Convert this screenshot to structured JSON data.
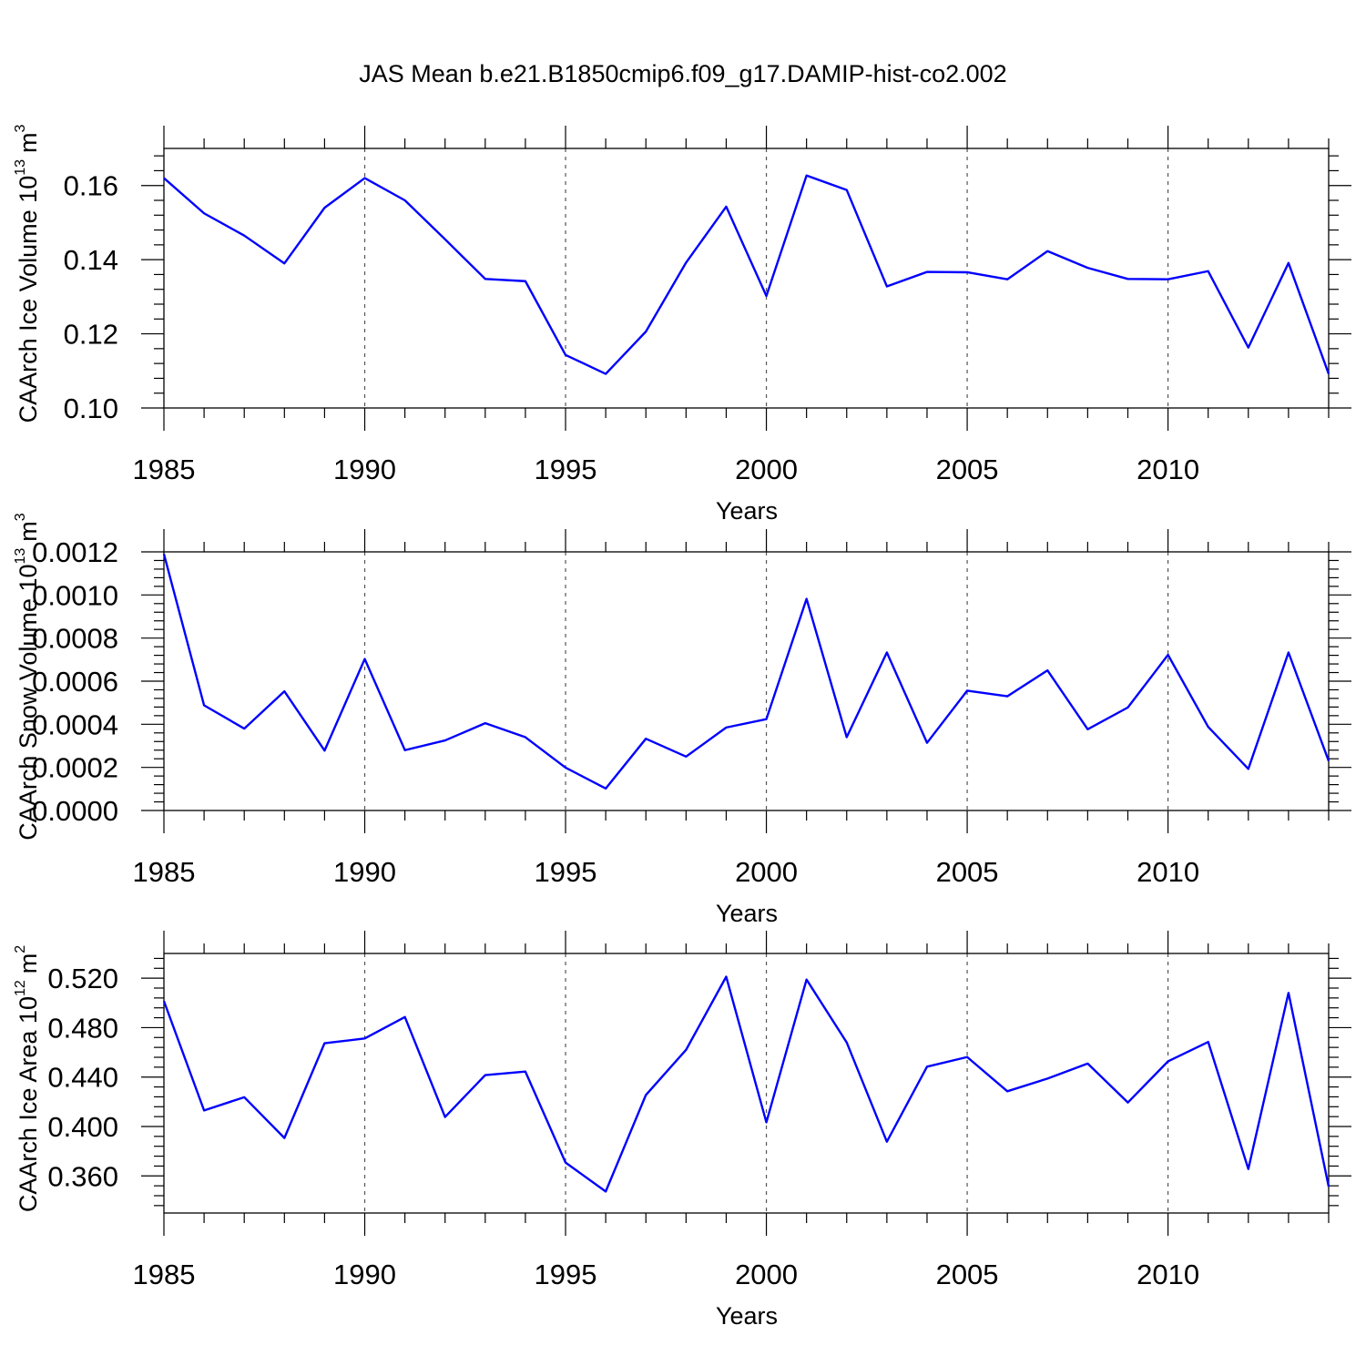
{
  "title": "JAS Mean b.e21.B1850cmip6.f09_g17.DAMIP-hist-co2.002",
  "colors": {
    "series": "#0000ff",
    "axis": "#000000",
    "grid": "#555555"
  },
  "chart_data": [
    {
      "type": "line",
      "ylabel_main": "CAArch Ice Volume 10",
      "ylabel_exp": "13",
      "ylabel_unit": "m",
      "ylabel_unit_exp": "3",
      "xlabel": "Years",
      "xlim": [
        1985,
        2014
      ],
      "ylim": [
        0.1,
        0.17
      ],
      "ytick_values": [
        0.1,
        0.12,
        0.14,
        0.16
      ],
      "ytick_labels": [
        "0.10",
        "0.12",
        "0.14",
        "0.16"
      ],
      "xtick_values": [
        1985,
        1990,
        1995,
        2000,
        2005,
        2010
      ],
      "xtick_labels": [
        "1985",
        "1990",
        "1995",
        "2000",
        "2005",
        "2010"
      ],
      "grid_x": [
        1990,
        1995,
        2000,
        2005,
        2010
      ],
      "series": [
        {
          "name": "Ice Volume",
          "x": [
            1985,
            1986,
            1987,
            1988,
            1989,
            1990,
            1991,
            1992,
            1993,
            1994,
            1995,
            1996,
            1997,
            1998,
            1999,
            2000,
            2001,
            2002,
            2003,
            2004,
            2005,
            2006,
            2007,
            2008,
            2009,
            2010,
            2011,
            2012,
            2013,
            2014
          ],
          "values": [
            0.162,
            0.1525,
            0.1465,
            0.139,
            0.154,
            0.162,
            0.156,
            0.1455,
            0.1348,
            0.1342,
            0.1143,
            0.1092,
            0.1206,
            0.1392,
            0.1543,
            0.1302,
            0.1627,
            0.1588,
            0.1328,
            0.1367,
            0.1366,
            0.1347,
            0.1423,
            0.1378,
            0.1348,
            0.1347,
            0.1369,
            0.1163,
            0.1391,
            0.1092
          ]
        }
      ]
    },
    {
      "type": "line",
      "ylabel_main": "CAArch Snow Volume 10",
      "ylabel_exp": "13",
      "ylabel_unit": "m",
      "ylabel_unit_exp": "3",
      "xlabel": "Years",
      "xlim": [
        1985,
        2014
      ],
      "ylim": [
        0.0,
        0.0012
      ],
      "ytick_values": [
        0.0,
        0.0002,
        0.0004,
        0.0006,
        0.0008,
        0.001,
        0.0012
      ],
      "ytick_labels": [
        "0.0000",
        "0.0002",
        "0.0004",
        "0.0006",
        "0.0008",
        "0.0010",
        "0.0012"
      ],
      "xtick_values": [
        1985,
        1990,
        1995,
        2000,
        2005,
        2010
      ],
      "xtick_labels": [
        "1985",
        "1990",
        "1995",
        "2000",
        "2005",
        "2010"
      ],
      "grid_x": [
        1990,
        1995,
        2000,
        2005,
        2010
      ],
      "series": [
        {
          "name": "Snow Volume",
          "x": [
            1985,
            1986,
            1987,
            1988,
            1989,
            1990,
            1991,
            1992,
            1993,
            1994,
            1995,
            1996,
            1997,
            1998,
            1999,
            2000,
            2001,
            2002,
            2003,
            2004,
            2005,
            2006,
            2007,
            2008,
            2009,
            2010,
            2011,
            2012,
            2013,
            2014
          ],
          "values": [
            0.00119,
            0.000488,
            0.00038,
            0.000553,
            0.000278,
            0.000703,
            0.00028,
            0.000325,
            0.000405,
            0.00034,
            0.000199,
            0.000102,
            0.000333,
            0.00025,
            0.000385,
            0.000424,
            0.000982,
            0.00034,
            0.000733,
            0.000314,
            0.000556,
            0.00053,
            0.00065,
            0.000377,
            0.000478,
            0.000722,
            0.000388,
            0.000193,
            0.000733,
            0.00023
          ]
        }
      ]
    },
    {
      "type": "line",
      "ylabel_main": "CAArch Ice Area 10",
      "ylabel_exp": "12",
      "ylabel_unit": "m",
      "ylabel_unit_exp": "2",
      "xlabel": "Years",
      "xlim": [
        1985,
        2014
      ],
      "ylim": [
        0.33,
        0.54
      ],
      "ytick_values": [
        0.36,
        0.4,
        0.44,
        0.48,
        0.52
      ],
      "ytick_labels": [
        "0.360",
        "0.400",
        "0.440",
        "0.480",
        "0.520"
      ],
      "xtick_values": [
        1985,
        1990,
        1995,
        2000,
        2005,
        2010
      ],
      "xtick_labels": [
        "1985",
        "1990",
        "1995",
        "2000",
        "2005",
        "2010"
      ],
      "grid_x": [
        1990,
        1995,
        2000,
        2005,
        2010
      ],
      "series": [
        {
          "name": "Ice Area",
          "x": [
            1985,
            1986,
            1987,
            1988,
            1989,
            1990,
            1991,
            1992,
            1993,
            1994,
            1995,
            1996,
            1997,
            1998,
            1999,
            2000,
            2001,
            2002,
            2003,
            2004,
            2005,
            2006,
            2007,
            2008,
            2009,
            2010,
            2011,
            2012,
            2013,
            2014
          ],
          "values": [
            0.5015,
            0.413,
            0.4237,
            0.3907,
            0.4674,
            0.4712,
            0.4886,
            0.4077,
            0.4416,
            0.4444,
            0.3708,
            0.3474,
            0.4255,
            0.462,
            0.5212,
            0.4034,
            0.5189,
            0.468,
            0.3877,
            0.4484,
            0.4562,
            0.4285,
            0.4388,
            0.4509,
            0.4194,
            0.4527,
            0.4684,
            0.3656,
            0.5081,
            0.3514
          ]
        }
      ]
    }
  ]
}
